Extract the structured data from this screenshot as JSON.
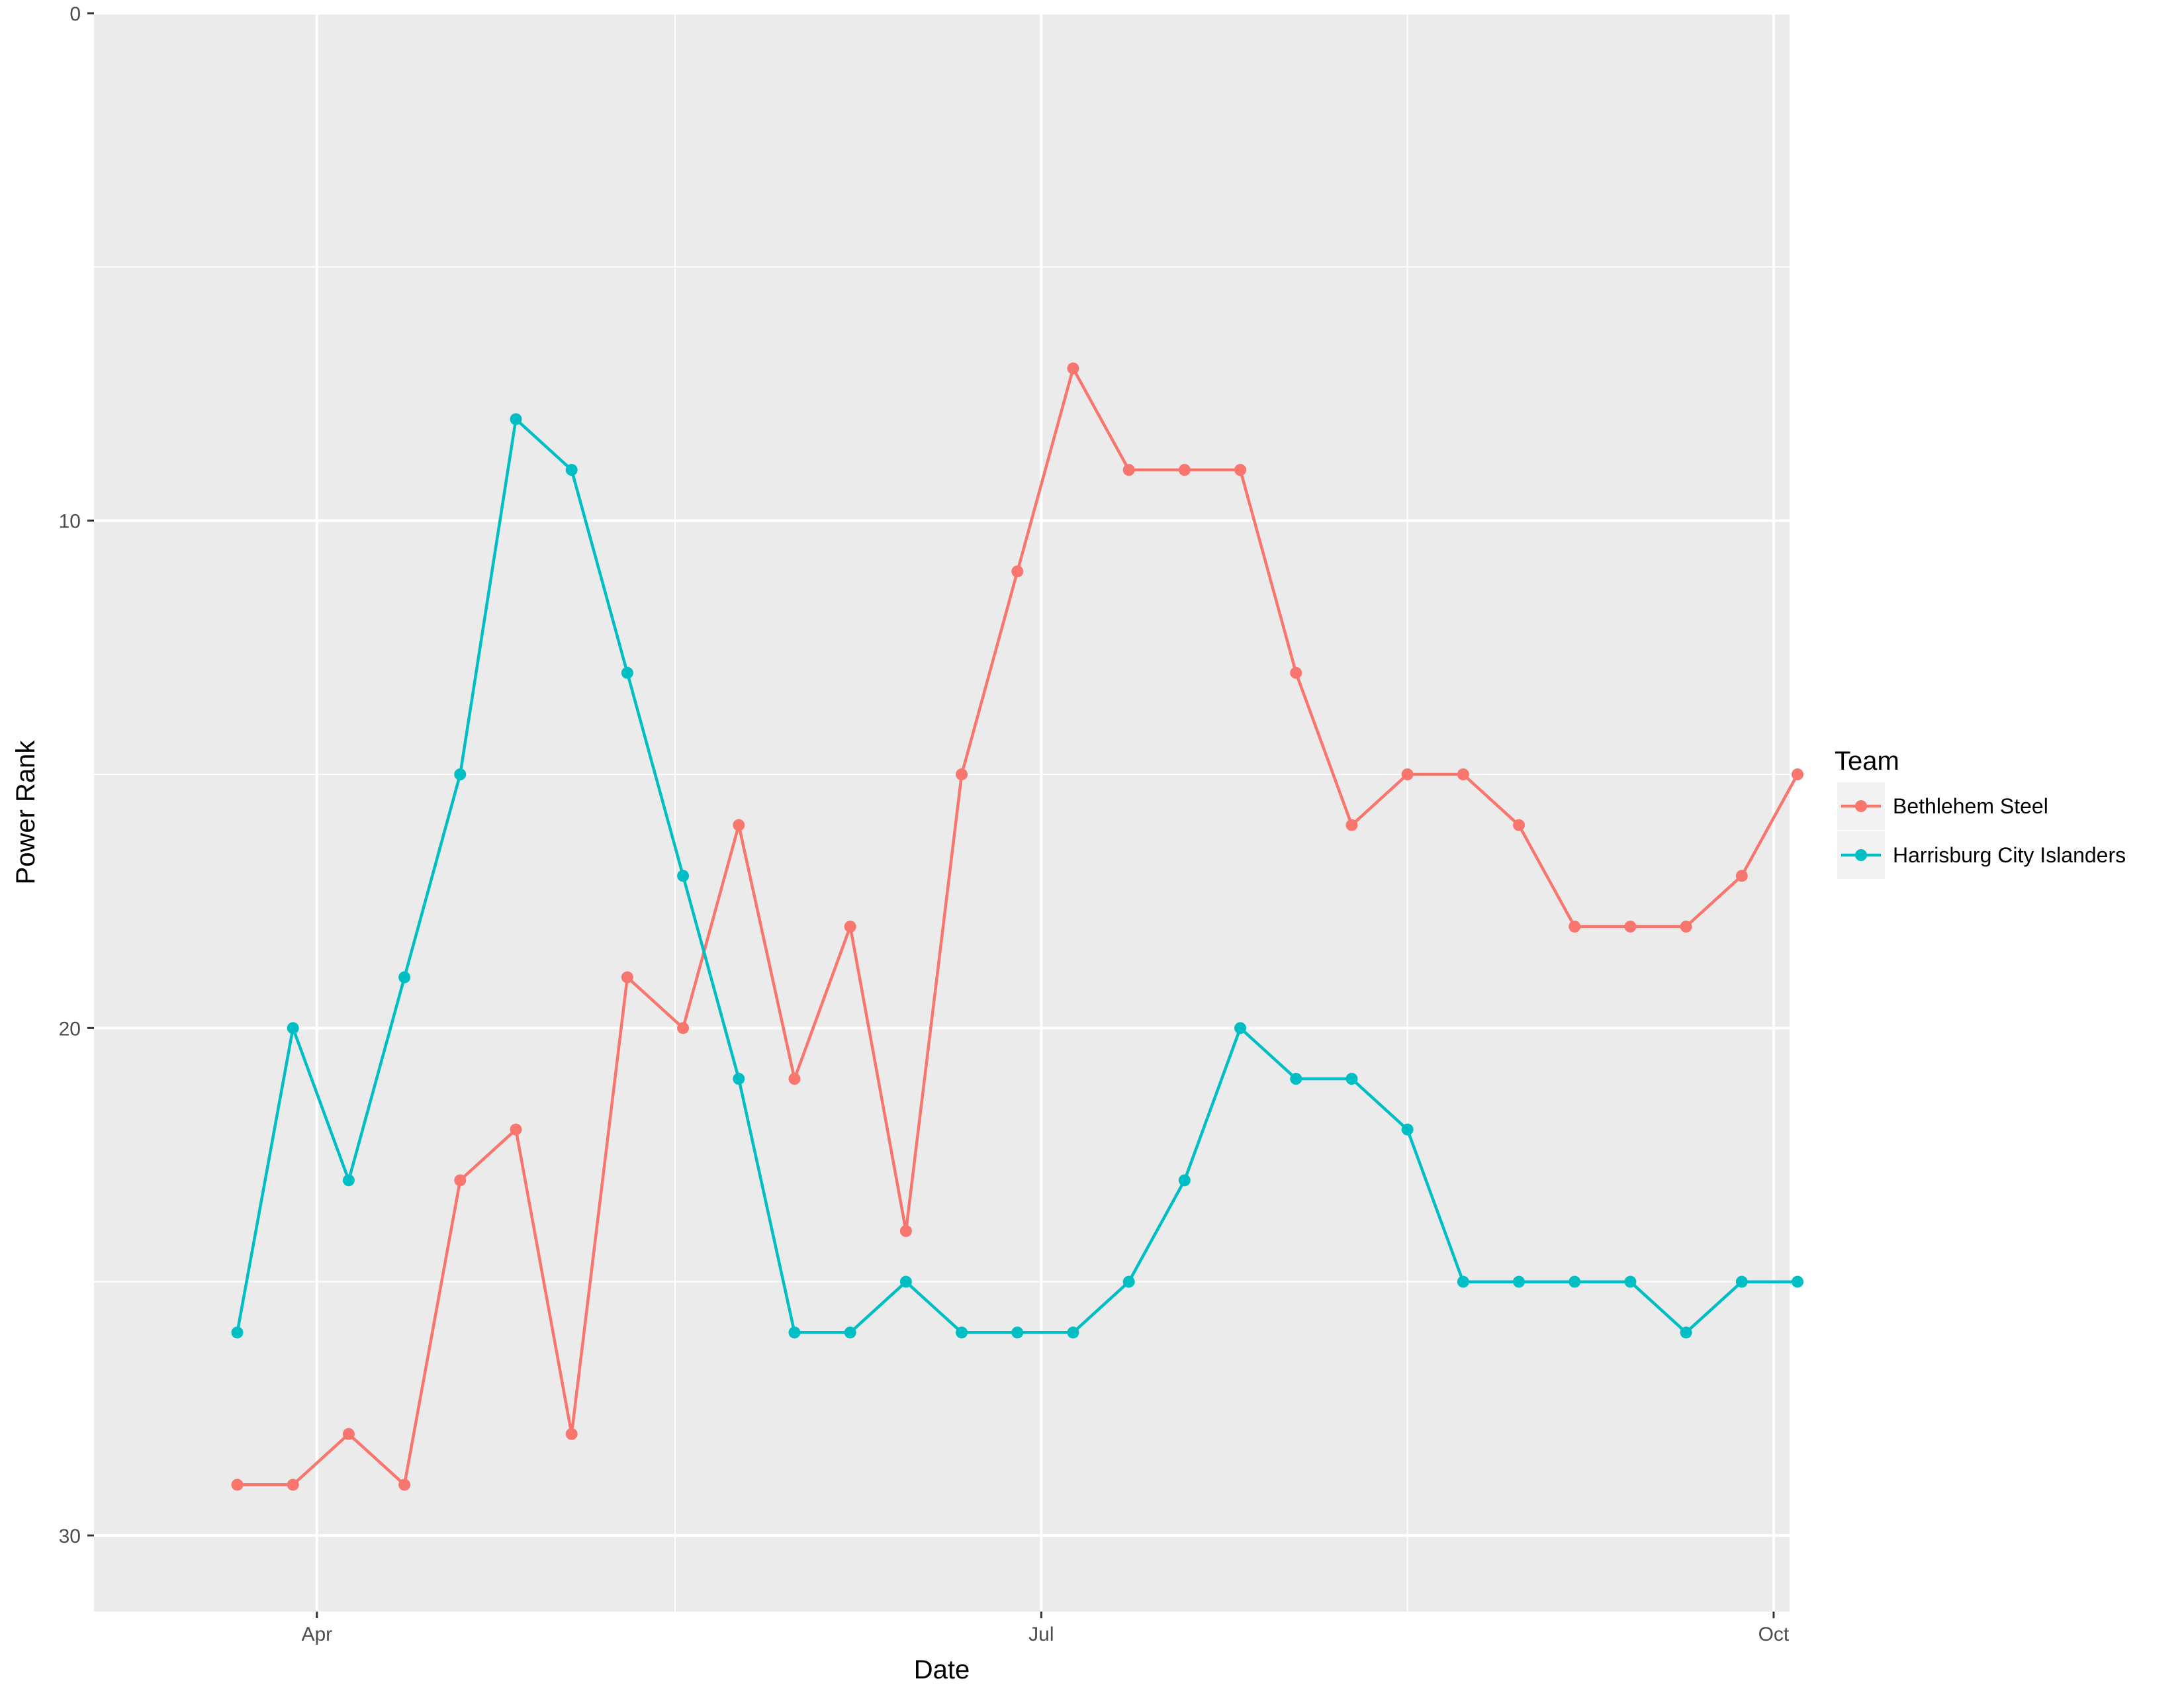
{
  "chart_data": {
    "type": "line",
    "xlabel": "Date",
    "ylabel": "Power Rank",
    "x_axis": {
      "kind": "date",
      "range": [
        "2017-03-04",
        "2017-10-03"
      ],
      "ticks": [
        {
          "date": "2017-04-01",
          "label": "Apr"
        },
        {
          "date": "2017-07-01",
          "label": "Jul"
        },
        {
          "date": "2017-10-01",
          "label": "Oct"
        }
      ],
      "minor_grid": [
        "2017-05-16",
        "2017-08-16"
      ]
    },
    "y_axis": {
      "range": [
        0,
        31.5
      ],
      "reversed": true,
      "ticks": [
        0,
        10,
        20,
        30
      ],
      "minor_grid": [
        5,
        15,
        25
      ]
    },
    "grid": true,
    "legend": {
      "title": "Team",
      "placement": "right"
    },
    "x": [
      "2017-03-22",
      "2017-03-29",
      "2017-04-05",
      "2017-04-12",
      "2017-04-19",
      "2017-04-26",
      "2017-05-03",
      "2017-05-10",
      "2017-05-17",
      "2017-05-24",
      "2017-05-31",
      "2017-06-07",
      "2017-06-14",
      "2017-06-21",
      "2017-06-28",
      "2017-07-05",
      "2017-07-12",
      "2017-07-19",
      "2017-07-26",
      "2017-08-02",
      "2017-08-09",
      "2017-08-16",
      "2017-08-23",
      "2017-08-30",
      "2017-09-06",
      "2017-09-13",
      "2017-09-20",
      "2017-09-27",
      "2017-10-04"
    ],
    "series": [
      {
        "name": "Bethlehem Steel",
        "color": "#F8766D",
        "points": [
          [
            "2017-03-22",
            29
          ],
          [
            "2017-03-29",
            29
          ],
          [
            "2017-04-05",
            28
          ],
          [
            "2017-04-12",
            29
          ],
          [
            "2017-04-19",
            23
          ],
          [
            "2017-04-26",
            22
          ],
          [
            "2017-05-03",
            28
          ],
          [
            "2017-05-10",
            19
          ],
          [
            "2017-05-17",
            20
          ],
          [
            "2017-05-24",
            16
          ],
          [
            "2017-05-31",
            21
          ],
          [
            "2017-06-07",
            18
          ],
          [
            "2017-06-14",
            24
          ],
          [
            "2017-06-21",
            15
          ],
          [
            "2017-06-28",
            11
          ],
          [
            "2017-07-05",
            7
          ],
          [
            "2017-07-12",
            9
          ],
          [
            "2017-07-19",
            9
          ],
          [
            "2017-07-26",
            9
          ],
          [
            "2017-08-02",
            13
          ],
          [
            "2017-08-09",
            16
          ],
          [
            "2017-08-16",
            15
          ],
          [
            "2017-08-23",
            15
          ],
          [
            "2017-08-30",
            16
          ],
          [
            "2017-09-06",
            18
          ],
          [
            "2017-09-13",
            18
          ],
          [
            "2017-09-20",
            18
          ],
          [
            "2017-09-27",
            17
          ],
          [
            "2017-10-04",
            15
          ]
        ]
      },
      {
        "name": "Harrisburg City Islanders",
        "color": "#00BFC4",
        "points": [
          [
            "2017-03-22",
            26
          ],
          [
            "2017-03-29",
            20
          ],
          [
            "2017-04-05",
            23
          ],
          [
            "2017-04-12",
            19
          ],
          [
            "2017-04-19",
            15
          ],
          [
            "2017-04-26",
            8
          ],
          [
            "2017-05-03",
            9
          ],
          [
            "2017-05-10",
            13
          ],
          [
            "2017-05-17",
            17
          ],
          [
            "2017-05-24",
            21
          ],
          [
            "2017-05-31",
            26
          ],
          [
            "2017-06-07",
            26
          ],
          [
            "2017-06-14",
            25
          ],
          [
            "2017-06-21",
            26
          ],
          [
            "2017-06-28",
            26
          ],
          [
            "2017-07-05",
            26
          ],
          [
            "2017-07-12",
            25
          ],
          [
            "2017-07-19",
            23
          ],
          [
            "2017-07-26",
            20
          ],
          [
            "2017-08-02",
            21
          ],
          [
            "2017-08-09",
            21
          ],
          [
            "2017-08-16",
            22
          ],
          [
            "2017-08-23",
            25
          ],
          [
            "2017-08-30",
            25
          ],
          [
            "2017-09-06",
            25
          ],
          [
            "2017-09-13",
            25
          ],
          [
            "2017-09-20",
            26
          ],
          [
            "2017-09-27",
            25
          ],
          [
            "2017-10-04",
            25
          ]
        ]
      }
    ]
  }
}
